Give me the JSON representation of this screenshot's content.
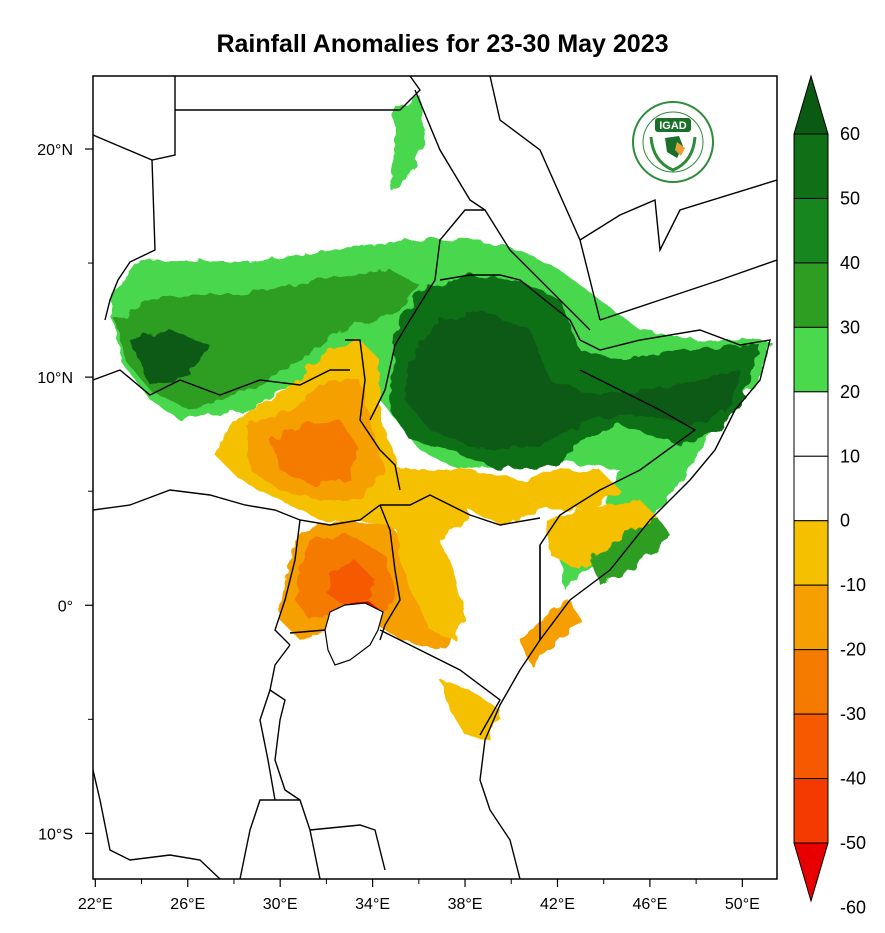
{
  "title": "Rainfall Anomalies for 23-30 May 2023",
  "logo": {
    "text": "IGAD",
    "colors": {
      "ring": "#2e8b3a",
      "fill": "#1a6f2a",
      "accent": "#e8a23a"
    }
  },
  "axes": {
    "x_ticks": [
      {
        "value": 22,
        "label": "22°E"
      },
      {
        "value": 26,
        "label": "26°E"
      },
      {
        "value": 30,
        "label": "30°E"
      },
      {
        "value": 34,
        "label": "34°E"
      },
      {
        "value": 38,
        "label": "38°E"
      },
      {
        "value": 42,
        "label": "42°E"
      },
      {
        "value": 46,
        "label": "46°E"
      },
      {
        "value": 50,
        "label": "50°E"
      }
    ],
    "y_ticks": [
      {
        "value": 20,
        "label": "20°N"
      },
      {
        "value": 10,
        "label": "10°N"
      },
      {
        "value": 0,
        "label": "0°"
      },
      {
        "value": -10,
        "label": "10°S"
      }
    ],
    "lon_range": [
      21.9,
      51.5
    ],
    "lat_range": [
      -12.0,
      23.2
    ]
  },
  "colorbar": {
    "levels": [
      "60",
      "50",
      "40",
      "30",
      "20",
      "10",
      "0",
      "-10",
      "-20",
      "-30",
      "-40",
      "-50",
      "-60"
    ],
    "colors_top_to_bottom": [
      "#0b5a12",
      "#0f7017",
      "#17861e",
      "#2e9e23",
      "#4ad84d",
      "#ffffff",
      "#ffffff",
      "#f5c000",
      "#f5a000",
      "#f57a00",
      "#f55a00",
      "#f53a00",
      "#e80000"
    ]
  }
}
